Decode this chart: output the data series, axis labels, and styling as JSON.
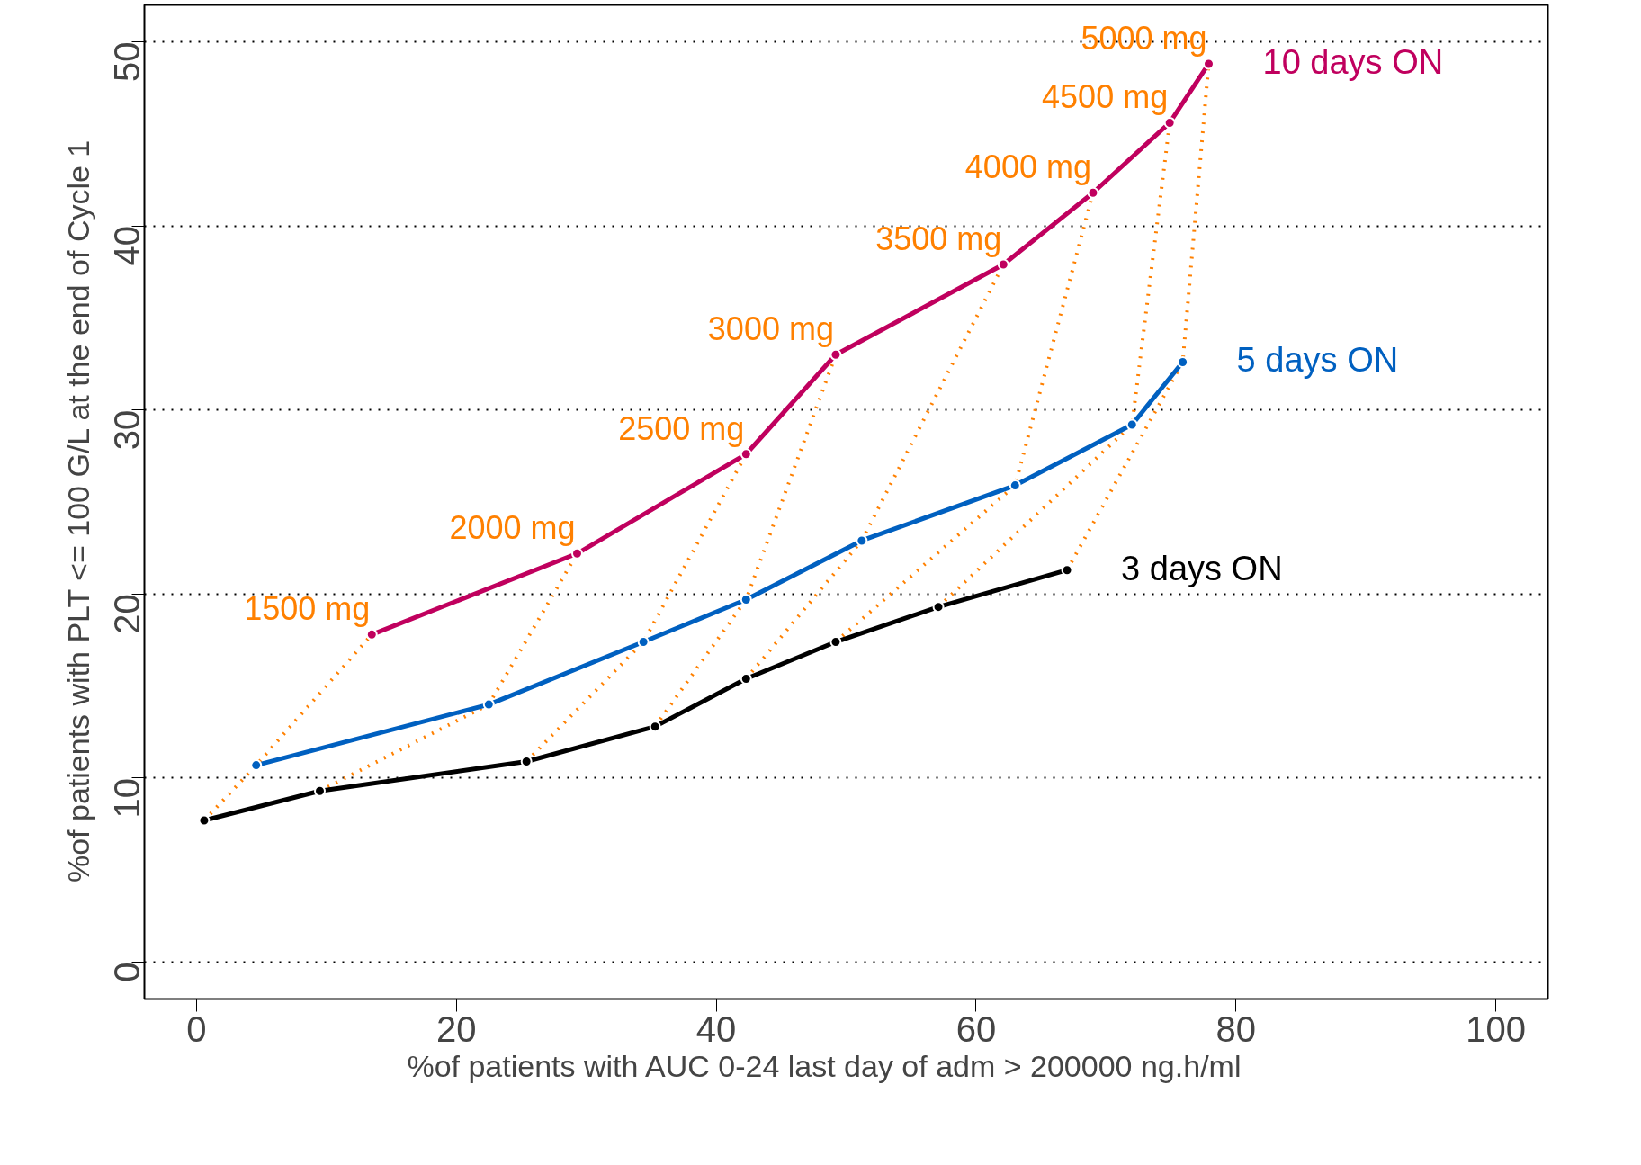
{
  "chart_data": {
    "type": "line",
    "xlabel": "%of patients with AUC  0-24  last day of adm  >  200000  ng.h/ml",
    "ylabel": "%of patients with PLT <=  100  G/L at the end of Cycle 1",
    "xlim": [
      -4,
      104
    ],
    "ylim": [
      -2,
      52
    ],
    "xticks": [
      0,
      20,
      40,
      60,
      80,
      100
    ],
    "yticks": [
      0,
      10,
      20,
      30,
      40,
      50
    ],
    "grid": "y",
    "legend": false,
    "series": [
      {
        "name": "1500 mg",
        "color": "#ff8000",
        "line_style": "dotted",
        "marker": "none",
        "x": [
          0.6,
          4.6,
          13.5
        ],
        "values": [
          7.7,
          10.7,
          17.8
        ]
      },
      {
        "name": "2000 mg",
        "color": "#ff8000",
        "line_style": "dotted",
        "marker": "none",
        "x": [
          9.5,
          22.5,
          29.3
        ],
        "values": [
          9.3,
          14.0,
          22.2
        ]
      },
      {
        "name": "2500 mg",
        "color": "#ff8000",
        "line_style": "dotted",
        "marker": "none",
        "x": [
          25.4,
          34.4,
          42.3
        ],
        "values": [
          10.9,
          17.4,
          27.6
        ]
      },
      {
        "name": "3000 mg",
        "color": "#ff8000",
        "line_style": "dotted",
        "marker": "none",
        "x": [
          35.3,
          42.3,
          49.2
        ],
        "values": [
          12.8,
          19.7,
          33.0
        ]
      },
      {
        "name": "3500 mg",
        "color": "#ff8000",
        "line_style": "dotted",
        "marker": "none",
        "x": [
          42.3,
          51.2,
          62.1
        ],
        "values": [
          15.4,
          22.9,
          37.9
        ]
      },
      {
        "name": "4000 mg",
        "color": "#ff8000",
        "line_style": "dotted",
        "marker": "none",
        "x": [
          49.2,
          63.0,
          69.0
        ],
        "values": [
          17.4,
          25.9,
          41.8
        ]
      },
      {
        "name": "4500 mg",
        "color": "#ff8000",
        "line_style": "dotted",
        "marker": "none",
        "x": [
          57.1,
          72.0,
          74.9
        ],
        "values": [
          19.3,
          29.2,
          45.6
        ]
      },
      {
        "name": "5000 mg",
        "color": "#ff8000",
        "line_style": "dotted",
        "marker": "none",
        "x": [
          67.0,
          75.9,
          77.9
        ],
        "values": [
          21.3,
          32.6,
          48.8
        ]
      },
      {
        "name": "10 days ON",
        "color": "#c0005e",
        "line_style": "solid",
        "marker": "circle",
        "x": [
          13.5,
          29.3,
          42.3,
          49.2,
          62.1,
          69.0,
          74.9,
          77.9
        ],
        "values": [
          17.8,
          22.2,
          27.6,
          33.0,
          37.9,
          41.8,
          45.6,
          48.8
        ]
      },
      {
        "name": "5 days ON",
        "color": "#0060c0",
        "line_style": "solid",
        "marker": "circle",
        "x": [
          4.6,
          22.5,
          34.4,
          42.3,
          51.2,
          63.0,
          72.0,
          75.9
        ],
        "values": [
          10.7,
          14.0,
          17.4,
          19.7,
          22.9,
          25.9,
          29.2,
          32.6
        ]
      },
      {
        "name": "3 days ON",
        "color": "#000000",
        "line_style": "solid",
        "marker": "circle",
        "x": [
          0.6,
          9.5,
          25.4,
          35.3,
          42.3,
          49.2,
          57.1,
          67.0
        ],
        "values": [
          7.7,
          9.3,
          10.9,
          12.8,
          15.4,
          17.4,
          19.3,
          21.3
        ]
      }
    ]
  }
}
